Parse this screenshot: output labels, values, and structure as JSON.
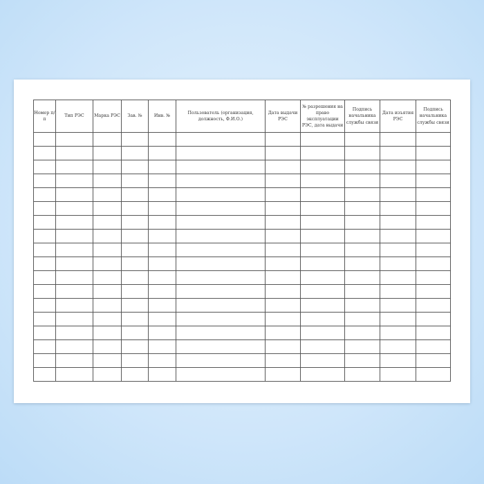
{
  "columns": [
    "Номер п/п",
    "Тип РЭС",
    "Марка РЭС",
    "Зав. №",
    "Инв. №",
    "Пользователь (организация, должность, Ф.И.О.)",
    "Дата выдачи РЭС",
    "№ разрешения на право эксплуатации РЭС, дата выдачи",
    "Подпись начальника службы связи",
    "Дата изъятия РЭС",
    "Подпись начальника службы связи"
  ]
}
